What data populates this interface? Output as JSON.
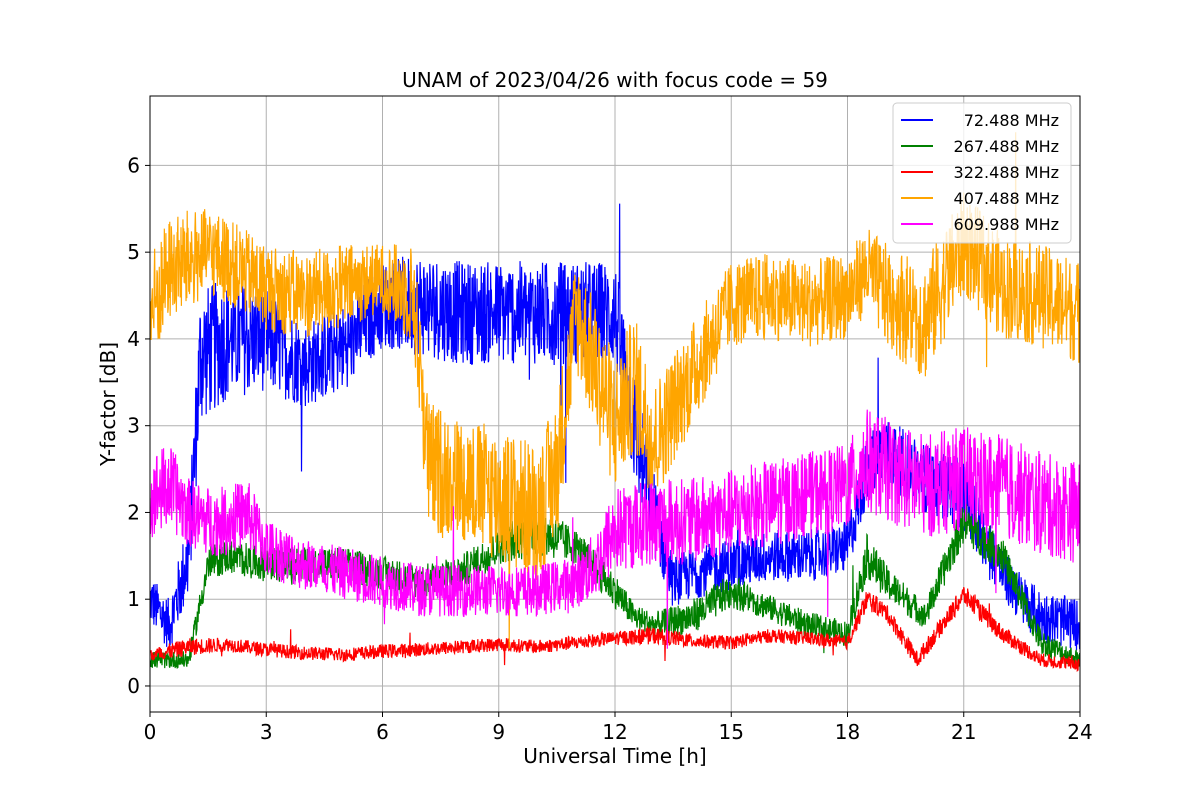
{
  "chart_data": {
    "type": "line",
    "title": "UNAM of 2023/04/26 with focus code = 59",
    "xlabel": "Universal Time [h]",
    "ylabel": "Y-factor [dB]",
    "xlim": [
      0,
      24
    ],
    "ylim": [
      -0.3,
      6.8
    ],
    "xticks": [
      0,
      3,
      6,
      9,
      12,
      15,
      18,
      21,
      24
    ],
    "yticks": [
      0,
      1,
      2,
      3,
      4,
      5,
      6
    ],
    "grid": true,
    "legend_position": "top-right",
    "series": [
      {
        "name": "72.488 MHz",
        "color": "#0000ff",
        "x": [
          0,
          0.5,
          1,
          1.3,
          2,
          3,
          4,
          5,
          6,
          7,
          8,
          9,
          10,
          11,
          12,
          12.5,
          13,
          13.5,
          14,
          15,
          16,
          17,
          18,
          18.5,
          19,
          20,
          21,
          22,
          22.5,
          23,
          24
        ],
        "y": [
          1.0,
          0.7,
          1.5,
          3.8,
          4.0,
          4.0,
          3.7,
          3.9,
          4.4,
          4.4,
          4.3,
          4.3,
          4.3,
          4.3,
          4.3,
          3.0,
          2.0,
          1.2,
          1.3,
          1.4,
          1.5,
          1.5,
          1.6,
          2.5,
          2.7,
          2.4,
          2.2,
          1.3,
          1.0,
          0.8,
          0.7
        ],
        "amp": [
          0.3,
          0.3,
          0.5,
          0.8,
          0.7,
          0.6,
          0.5,
          0.5,
          0.5,
          0.6,
          0.6,
          0.6,
          0.6,
          0.6,
          0.6,
          0.7,
          0.5,
          0.3,
          0.3,
          0.3,
          0.3,
          0.3,
          0.3,
          0.4,
          0.4,
          0.4,
          0.4,
          0.3,
          0.3,
          0.3,
          0.3
        ]
      },
      {
        "name": "267.488 MHz",
        "color": "#008000",
        "x": [
          0,
          1,
          1.5,
          2,
          3,
          4,
          5,
          6,
          7,
          8,
          9,
          10,
          11,
          12,
          12.5,
          13,
          14,
          15,
          16,
          17,
          18,
          18.5,
          19,
          20,
          21,
          22,
          23,
          24
        ],
        "y": [
          0.3,
          0.3,
          1.4,
          1.5,
          1.4,
          1.4,
          1.4,
          1.3,
          1.2,
          1.3,
          1.6,
          1.8,
          1.6,
          1.1,
          0.8,
          0.7,
          0.8,
          1.1,
          0.9,
          0.7,
          0.6,
          1.5,
          1.2,
          0.8,
          1.9,
          1.5,
          0.5,
          0.3
        ],
        "amp": [
          0.1,
          0.1,
          0.2,
          0.2,
          0.2,
          0.2,
          0.2,
          0.2,
          0.2,
          0.2,
          0.2,
          0.3,
          0.2,
          0.2,
          0.15,
          0.15,
          0.2,
          0.2,
          0.15,
          0.15,
          0.15,
          0.25,
          0.2,
          0.15,
          0.25,
          0.2,
          0.15,
          0.1
        ]
      },
      {
        "name": "322.488 MHz",
        "color": "#ff0000",
        "x": [
          0,
          1,
          2,
          3,
          4,
          5,
          6,
          7,
          8,
          9,
          10,
          11,
          12,
          13,
          14,
          15,
          16,
          17,
          18,
          18.5,
          19,
          19.8,
          20.2,
          21,
          22,
          23,
          24
        ],
        "y": [
          0.35,
          0.45,
          0.48,
          0.42,
          0.38,
          0.36,
          0.4,
          0.42,
          0.45,
          0.48,
          0.45,
          0.5,
          0.55,
          0.58,
          0.52,
          0.5,
          0.58,
          0.55,
          0.5,
          1.0,
          0.85,
          0.3,
          0.55,
          1.05,
          0.6,
          0.3,
          0.25
        ],
        "amp": [
          0.08,
          0.1,
          0.08,
          0.08,
          0.08,
          0.08,
          0.08,
          0.08,
          0.08,
          0.08,
          0.08,
          0.08,
          0.08,
          0.1,
          0.08,
          0.08,
          0.08,
          0.08,
          0.08,
          0.12,
          0.1,
          0.1,
          0.1,
          0.12,
          0.1,
          0.08,
          0.08
        ]
      },
      {
        "name": "407.488 MHz",
        "color": "#ffa500",
        "x": [
          0,
          0.5,
          1,
          1.5,
          2,
          3,
          4,
          5,
          6,
          6.8,
          7.2,
          8,
          9,
          10,
          10.5,
          11,
          12,
          12.5,
          13,
          14,
          15,
          16,
          17,
          18,
          18.5,
          19,
          20,
          21,
          22,
          23,
          24
        ],
        "y": [
          4.3,
          4.8,
          4.9,
          5.0,
          4.9,
          4.6,
          4.5,
          4.6,
          4.7,
          4.5,
          2.5,
          2.4,
          2.2,
          2.0,
          2.5,
          4.3,
          3.0,
          3.5,
          2.8,
          3.6,
          4.4,
          4.5,
          4.4,
          4.5,
          4.8,
          4.5,
          4.2,
          5.1,
          4.6,
          4.5,
          4.3
        ],
        "amp": [
          0.7,
          0.6,
          0.6,
          0.5,
          0.5,
          0.5,
          0.5,
          0.5,
          0.4,
          0.6,
          0.8,
          0.7,
          0.8,
          0.8,
          0.8,
          0.7,
          0.8,
          0.8,
          0.7,
          0.6,
          0.5,
          0.5,
          0.5,
          0.5,
          0.5,
          0.6,
          0.7,
          0.6,
          0.6,
          0.6,
          0.6
        ]
      },
      {
        "name": "609.988 MHz",
        "color": "#ff00ff",
        "x": [
          0,
          0.5,
          1,
          1.5,
          2,
          2.5,
          3,
          4,
          5,
          6,
          7,
          8,
          9,
          10,
          11,
          11.5,
          12,
          13,
          14,
          15,
          16,
          17,
          18,
          18.5,
          19,
          20,
          21,
          22,
          23,
          24
        ],
        "y": [
          2.2,
          2.3,
          2.0,
          1.9,
          1.9,
          2.0,
          1.6,
          1.4,
          1.3,
          1.2,
          1.1,
          1.1,
          1.1,
          1.1,
          1.2,
          1.4,
          1.8,
          1.9,
          1.9,
          2.0,
          2.1,
          2.2,
          2.3,
          2.6,
          2.5,
          2.3,
          2.4,
          2.3,
          2.1,
          2.0
        ],
        "amp": [
          0.5,
          0.5,
          0.4,
          0.4,
          0.4,
          0.4,
          0.35,
          0.3,
          0.3,
          0.3,
          0.3,
          0.3,
          0.3,
          0.3,
          0.3,
          0.4,
          0.5,
          0.5,
          0.5,
          0.5,
          0.5,
          0.5,
          0.5,
          0.6,
          0.6,
          0.6,
          0.6,
          0.6,
          0.6,
          0.6
        ]
      }
    ]
  }
}
